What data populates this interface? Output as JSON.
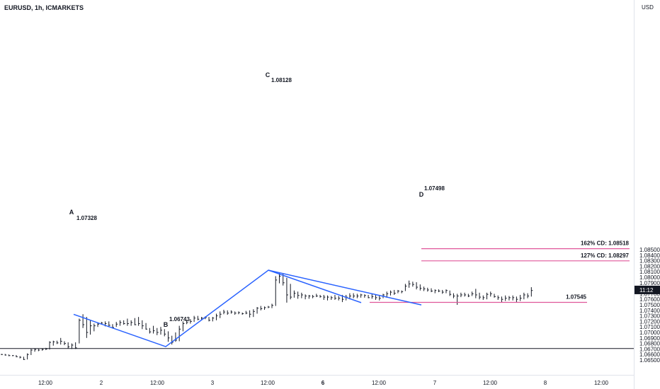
{
  "header": {
    "symbol": "EURUSD, 1h, ICMARKETS",
    "currency": "USD"
  },
  "price_tag": {
    "text": "11:12",
    "value": 1.0777
  },
  "chart_data": {
    "type": "candlestick",
    "title": "EURUSD, 1h, ICMARKETS",
    "ylabel": "USD",
    "ylim": [
      1.0645,
      1.0853
    ],
    "y_ticks": [
      1.065,
      1.066,
      1.067,
      1.068,
      1.069,
      1.07,
      1.071,
      1.072,
      1.073,
      1.074,
      1.075,
      1.076,
      1.077,
      1.078,
      1.079,
      1.08,
      1.081,
      1.082,
      1.083,
      1.084,
      1.085
    ],
    "y_tick_labels": [
      "1.06500",
      "1.06600",
      "1.06700",
      "1.06800",
      "1.06900",
      "1.07000",
      "1.07100",
      "1.07200",
      "1.07300",
      "1.07400",
      "1.07500",
      "1.07600",
      "1.07700",
      "1.07800",
      "1.07900",
      "1.08000",
      "1.08100",
      "1.08200",
      "1.08300",
      "1.08400",
      "1.08500"
    ],
    "x_tick_labels": [
      "12:00",
      "2",
      "12:00",
      "3",
      "12:00",
      "6",
      "12:00",
      "7",
      "12:00",
      "8",
      "12:00"
    ],
    "x_tick_bold": [
      false,
      false,
      false,
      false,
      false,
      true,
      false,
      false,
      false,
      false,
      false
    ],
    "bars_hlc": [
      [
        1.0661,
        1.0659,
        1.066
      ],
      [
        1.0661,
        1.0658,
        1.0659
      ],
      [
        1.066,
        1.0657,
        1.0658
      ],
      [
        1.0659,
        1.0657,
        1.0658
      ],
      [
        1.0659,
        1.0655,
        1.0656
      ],
      [
        1.0657,
        1.0653,
        1.0655
      ],
      [
        1.0656,
        1.065,
        1.0651
      ],
      [
        1.0662,
        1.0651,
        1.066
      ],
      [
        1.067,
        1.0659,
        1.0668
      ],
      [
        1.0671,
        1.0665,
        1.0669
      ],
      [
        1.067,
        1.0666,
        1.0668
      ],
      [
        1.0671,
        1.0667,
        1.0669
      ],
      [
        1.0672,
        1.0668,
        1.067
      ],
      [
        1.0684,
        1.0669,
        1.0682
      ],
      [
        1.0685,
        1.0676,
        1.0683
      ],
      [
        1.0685,
        1.0679,
        1.0681
      ],
      [
        1.069,
        1.0678,
        1.0684
      ],
      [
        1.0684,
        1.0677,
        1.068
      ],
      [
        1.0682,
        1.0671,
        1.0674
      ],
      [
        1.068,
        1.067,
        1.0677
      ],
      [
        1.0682,
        1.067,
        1.0672
      ],
      [
        1.0725,
        1.068,
        1.0722
      ],
      [
        1.0733,
        1.0708,
        1.0714
      ],
      [
        1.0728,
        1.069,
        1.07
      ],
      [
        1.0722,
        1.0696,
        1.0712
      ],
      [
        1.0716,
        1.0702,
        1.0712
      ],
      [
        1.0718,
        1.071,
        1.0715
      ],
      [
        1.0719,
        1.0714,
        1.0717
      ],
      [
        1.072,
        1.0711,
        1.0716
      ],
      [
        1.072,
        1.071,
        1.0713
      ],
      [
        1.0715,
        1.0707,
        1.0709
      ],
      [
        1.0719,
        1.071,
        1.0715
      ],
      [
        1.0722,
        1.0712,
        1.0718
      ],
      [
        1.0722,
        1.0714,
        1.0716
      ],
      [
        1.0725,
        1.0712,
        1.0716
      ],
      [
        1.0722,
        1.0712,
        1.0718
      ],
      [
        1.0726,
        1.0713,
        1.0714
      ],
      [
        1.0728,
        1.0712,
        1.0716
      ],
      [
        1.0722,
        1.0706,
        1.0712
      ],
      [
        1.0717,
        1.0705,
        1.0706
      ],
      [
        1.0708,
        1.0698,
        1.0701
      ],
      [
        1.0712,
        1.0698,
        1.0703
      ],
      [
        1.0708,
        1.0695,
        1.07
      ],
      [
        1.071,
        1.0696,
        1.0704
      ],
      [
        1.0706,
        1.0693,
        1.0697
      ],
      [
        1.0702,
        1.0683,
        1.069
      ],
      [
        1.0694,
        1.0678,
        1.0682
      ],
      [
        1.07,
        1.0683,
        1.0686
      ],
      [
        1.0712,
        1.0684,
        1.0706
      ],
      [
        1.072,
        1.0702,
        1.0716
      ],
      [
        1.0722,
        1.0715,
        1.0718
      ],
      [
        1.0724,
        1.0716,
        1.072
      ],
      [
        1.073,
        1.0719,
        1.0726
      ],
      [
        1.073,
        1.0722,
        1.0724
      ],
      [
        1.0728,
        1.0722,
        1.0726
      ],
      [
        1.0729,
        1.0724,
        1.0727
      ],
      [
        1.0728,
        1.072,
        1.0722
      ],
      [
        1.0728,
        1.072,
        1.0726
      ],
      [
        1.0734,
        1.0722,
        1.073
      ],
      [
        1.0738,
        1.0726,
        1.0733
      ],
      [
        1.0741,
        1.0733,
        1.0737
      ],
      [
        1.074,
        1.0732,
        1.0735
      ],
      [
        1.074,
        1.0734,
        1.0737
      ],
      [
        1.0738,
        1.0732,
        1.0735
      ],
      [
        1.0738,
        1.0733,
        1.0736
      ],
      [
        1.0736,
        1.0732,
        1.0734
      ],
      [
        1.0739,
        1.0733,
        1.0735
      ],
      [
        1.074,
        1.0727,
        1.0733
      ],
      [
        1.0742,
        1.0728,
        1.0738
      ],
      [
        1.0746,
        1.0734,
        1.0744
      ],
      [
        1.0748,
        1.074,
        1.0743
      ],
      [
        1.0747,
        1.0741,
        1.0745
      ],
      [
        1.0748,
        1.0744,
        1.0746
      ],
      [
        1.0752,
        1.0744,
        1.0749
      ],
      [
        1.0802,
        1.0748,
        1.0795
      ],
      [
        1.0808,
        1.0789,
        1.0802
      ],
      [
        1.0807,
        1.0785,
        1.079
      ],
      [
        1.0799,
        1.0754,
        1.0768
      ],
      [
        1.0788,
        1.076,
        1.0764
      ],
      [
        1.0776,
        1.0763,
        1.0771
      ],
      [
        1.0774,
        1.0761,
        1.0767
      ],
      [
        1.0772,
        1.0762,
        1.0768
      ],
      [
        1.0769,
        1.076,
        1.0766
      ],
      [
        1.0768,
        1.0761,
        1.0766
      ],
      [
        1.0768,
        1.0762,
        1.0765
      ],
      [
        1.077,
        1.0764,
        1.0766
      ],
      [
        1.0768,
        1.0763,
        1.0765
      ],
      [
        1.0768,
        1.0759,
        1.0764
      ],
      [
        1.0767,
        1.0758,
        1.0764
      ],
      [
        1.0766,
        1.0759,
        1.0763
      ],
      [
        1.0768,
        1.0759,
        1.0762
      ],
      [
        1.0766,
        1.0758,
        1.0762
      ],
      [
        1.0768,
        1.0755,
        1.076
      ],
      [
        1.0768,
        1.0758,
        1.0764
      ],
      [
        1.0771,
        1.076,
        1.0766
      ],
      [
        1.0771,
        1.0762,
        1.0766
      ],
      [
        1.077,
        1.0762,
        1.0766
      ],
      [
        1.077,
        1.0763,
        1.0768
      ],
      [
        1.0769,
        1.0763,
        1.0767
      ],
      [
        1.0768,
        1.0762,
        1.0763
      ],
      [
        1.077,
        1.0761,
        1.0765
      ],
      [
        1.0768,
        1.0759,
        1.0763
      ],
      [
        1.0768,
        1.0758,
        1.0762
      ],
      [
        1.077,
        1.0762,
        1.0768
      ],
      [
        1.0774,
        1.0763,
        1.077
      ],
      [
        1.0776,
        1.0767,
        1.0773
      ],
      [
        1.0777,
        1.0768,
        1.0771
      ],
      [
        1.0777,
        1.0771,
        1.0775
      ],
      [
        1.0776,
        1.0771,
        1.0774
      ],
      [
        1.0788,
        1.0775,
        1.0784
      ],
      [
        1.0794,
        1.0781,
        1.0788
      ],
      [
        1.0792,
        1.0783,
        1.0787
      ],
      [
        1.0791,
        1.0778,
        1.0782
      ],
      [
        1.0787,
        1.0776,
        1.078
      ],
      [
        1.0783,
        1.0775,
        1.0779
      ],
      [
        1.0781,
        1.0774,
        1.0777
      ],
      [
        1.078,
        1.0773,
        1.0775
      ],
      [
        1.0778,
        1.0771,
        1.0776
      ],
      [
        1.0778,
        1.0773,
        1.0775
      ],
      [
        1.0777,
        1.077,
        1.0773
      ],
      [
        1.0778,
        1.0771,
        1.0776
      ],
      [
        1.0776,
        1.0766,
        1.0769
      ],
      [
        1.0771,
        1.0762,
        1.0766
      ],
      [
        1.077,
        1.075,
        1.0766
      ],
      [
        1.0772,
        1.0764,
        1.0768
      ],
      [
        1.0772,
        1.0765,
        1.0768
      ],
      [
        1.077,
        1.0764,
        1.0766
      ],
      [
        1.0774,
        1.0766,
        1.077
      ],
      [
        1.0779,
        1.0762,
        1.0768
      ],
      [
        1.0772,
        1.076,
        1.0764
      ],
      [
        1.0767,
        1.0759,
        1.0763
      ],
      [
        1.0772,
        1.076,
        1.0769
      ],
      [
        1.0774,
        1.0765,
        1.077
      ],
      [
        1.077,
        1.0763,
        1.0765
      ],
      [
        1.0767,
        1.0759,
        1.0763
      ],
      [
        1.0765,
        1.0754,
        1.076
      ],
      [
        1.0767,
        1.0757,
        1.0762
      ],
      [
        1.0766,
        1.0758,
        1.0763
      ],
      [
        1.0767,
        1.0758,
        1.0763
      ],
      [
        1.0765,
        1.0755,
        1.076
      ],
      [
        1.0768,
        1.0757,
        1.0762
      ],
      [
        1.0772,
        1.076,
        1.0768
      ],
      [
        1.0771,
        1.0762,
        1.0766
      ],
      [
        1.0782,
        1.0765,
        1.0776
      ]
    ],
    "horizontal_line": {
      "value": 1.06708,
      "label": ""
    },
    "harmonic_levels": [
      {
        "label": "162% CD: 1.08518",
        "value": 1.08518
      },
      {
        "label": "127% CD: 1.08297",
        "value": 1.08297
      },
      {
        "label": "1.07545",
        "value": 1.07545
      }
    ],
    "pattern_points": [
      {
        "name": "A",
        "value": 1.07328,
        "label": "1.07328"
      },
      {
        "name": "B",
        "value": 1.06743,
        "label": "1.06743"
      },
      {
        "name": "C",
        "value": 1.08128,
        "label": "1.08128"
      },
      {
        "name": "D",
        "value": 1.07498,
        "label": "1.07498"
      }
    ],
    "grid": false,
    "legend": "none"
  }
}
